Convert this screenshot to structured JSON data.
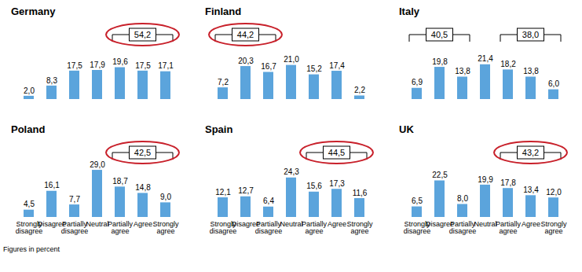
{
  "caption": "Figures in percent",
  "chart_data": [
    {
      "type": "bar",
      "title": "Germany",
      "categories": [
        "Strongly disagree",
        "Disagree",
        "Partially disagree",
        "Neutral",
        "Partially agree",
        "Agree",
        "Strongly agree"
      ],
      "values": [
        2.0,
        8.3,
        17.5,
        17.9,
        19.6,
        17.5,
        17.1
      ],
      "value_labels": [
        "2,0",
        "8,3",
        "17,5",
        "17,9",
        "19,6",
        "17,5",
        "17,1"
      ],
      "color": "#5ba4dc",
      "ylim": [
        0,
        30
      ],
      "data_labels": true,
      "tick_labels": false,
      "annotations": [
        {
          "value": 54.2,
          "label": "54,2",
          "categories": [
            "Partially agree",
            "Agree",
            "Strongly agree"
          ],
          "color": "#c8202a"
        }
      ]
    },
    {
      "type": "bar",
      "title": "Finland",
      "categories": [
        "Strongly disagree",
        "Disagree",
        "Partially disagree",
        "Neutral",
        "Partially agree",
        "Agree",
        "Strongly agree"
      ],
      "values": [
        7.2,
        20.3,
        16.7,
        21.0,
        15.2,
        17.4,
        2.2
      ],
      "value_labels": [
        "7,2",
        "20,3",
        "16,7",
        "21,0",
        "15,2",
        "17,4",
        "2,2"
      ],
      "color": "#5ba4dc",
      "ylim": [
        0,
        30
      ],
      "data_labels": true,
      "tick_labels": false,
      "annotations": [
        {
          "value": 44.2,
          "label": "44,2",
          "categories": [
            "Strongly disagree",
            "Disagree",
            "Partially disagree"
          ],
          "color": "#c8202a"
        }
      ]
    },
    {
      "type": "bar",
      "title": "Italy",
      "categories": [
        "Strongly disagree",
        "Disagree",
        "Partially disagree",
        "Neutral",
        "Partially agree",
        "Agree",
        "Strongly agree"
      ],
      "values": [
        6.9,
        19.8,
        13.8,
        21.4,
        18.2,
        13.8,
        6.0
      ],
      "value_labels": [
        "6,9",
        "19,8",
        "13,8",
        "21,4",
        "18,2",
        "13,8",
        "6,0"
      ],
      "color": "#5ba4dc",
      "ylim": [
        0,
        30
      ],
      "data_labels": true,
      "tick_labels": false,
      "annotations": [
        {
          "value": 40.5,
          "label": "40,5",
          "categories": [
            "Strongly disagree",
            "Disagree",
            "Partially disagree"
          ]
        },
        {
          "value": 38.0,
          "label": "38,0",
          "categories": [
            "Partially agree",
            "Agree",
            "Strongly agree"
          ]
        }
      ]
    },
    {
      "type": "bar",
      "title": "Poland",
      "categories": [
        "Strongly disagree",
        "Disagree",
        "Partially disagree",
        "Neutral",
        "Partially agree",
        "Agree",
        "Strongly agree"
      ],
      "values": [
        4.5,
        16.1,
        7.7,
        29.0,
        18.7,
        14.8,
        9.0
      ],
      "value_labels": [
        "4,5",
        "16,1",
        "7,7",
        "29,0",
        "18,7",
        "14,8",
        "9,0"
      ],
      "color": "#5ba4dc",
      "ylim": [
        0,
        30
      ],
      "data_labels": true,
      "tick_labels": "x",
      "annotations": [
        {
          "value": 42.5,
          "label": "42,5",
          "categories": [
            "Partially agree",
            "Agree",
            "Strongly agree"
          ],
          "color": "#c8202a"
        }
      ]
    },
    {
      "type": "bar",
      "title": "Spain",
      "categories": [
        "Strongly disagree",
        "Disagree",
        "Partially disagree",
        "Neutral",
        "Partially agree",
        "Agree",
        "Strongly agree"
      ],
      "values": [
        12.1,
        12.7,
        6.4,
        24.3,
        15.6,
        17.3,
        11.6
      ],
      "value_labels": [
        "12,1",
        "12,7",
        "6,4",
        "24,3",
        "15,6",
        "17,3",
        "11,6"
      ],
      "color": "#5ba4dc",
      "ylim": [
        0,
        30
      ],
      "data_labels": true,
      "tick_labels": "x",
      "annotations": [
        {
          "value": 44.5,
          "label": "44,5",
          "categories": [
            "Partially agree",
            "Agree",
            "Strongly agree"
          ],
          "color": "#c8202a"
        }
      ]
    },
    {
      "type": "bar",
      "title": "UK",
      "categories": [
        "Strongly disagree",
        "Disagree",
        "Partially disagree",
        "Neutral",
        "Partially agree",
        "Agree",
        "Strongly agree"
      ],
      "values": [
        6.5,
        22.5,
        8.0,
        19.9,
        17.8,
        13.4,
        12.0
      ],
      "value_labels": [
        "6,5",
        "22,5",
        "8,0",
        "19,9",
        "17,8",
        "13,4",
        "12,0"
      ],
      "color": "#5ba4dc",
      "ylim": [
        0,
        30
      ],
      "data_labels": true,
      "tick_labels": "x",
      "annotations": [
        {
          "value": 43.2,
          "label": "43,2",
          "categories": [
            "Partially agree",
            "Agree",
            "Strongly agree"
          ],
          "color": "#c8202a"
        }
      ]
    }
  ]
}
